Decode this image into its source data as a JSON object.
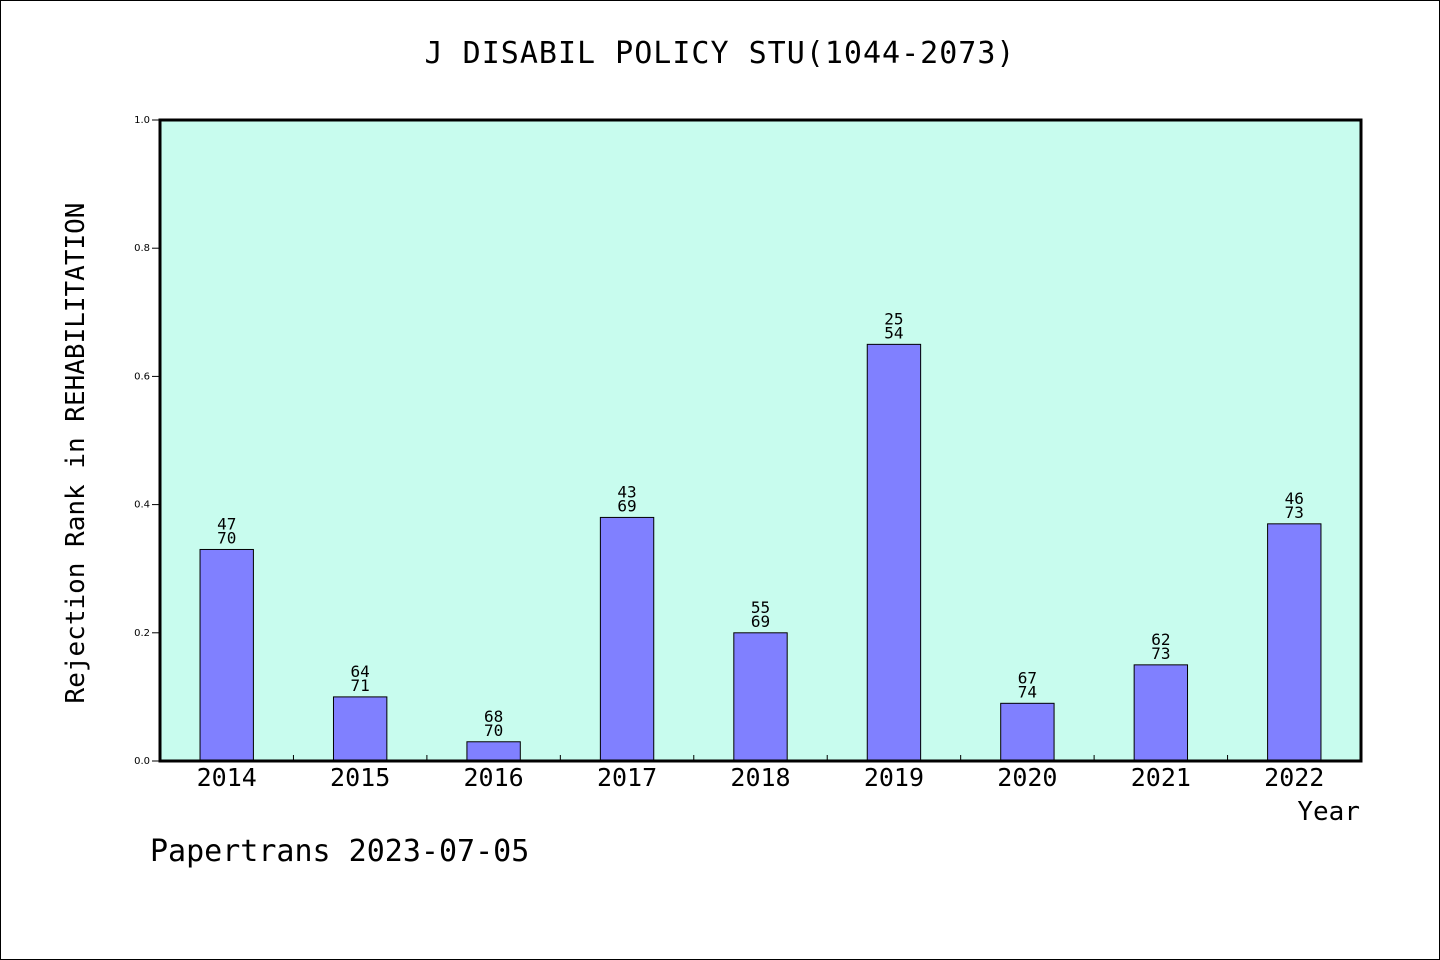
{
  "title": "J DISABIL POLICY STU(1044-2073)",
  "footer": "Papertrans 2023-07-05",
  "colors": {
    "plot_background": "#c8fcee",
    "bar_fill": "#8080ff",
    "bar_stroke": "#000000"
  },
  "chart_data": {
    "type": "bar",
    "title": "J DISABIL POLICY STU(1044-2073)",
    "xlabel": "Year",
    "ylabel": "Rejection Rank in REHABILITATION",
    "ylim": [
      0,
      1.0
    ],
    "yticks": [
      "0.0",
      "0.2",
      "0.4",
      "0.6",
      "0.8",
      "1.0"
    ],
    "categories": [
      "2014",
      "2015",
      "2016",
      "2017",
      "2018",
      "2019",
      "2020",
      "2021",
      "2022"
    ],
    "values": [
      0.33,
      0.1,
      0.03,
      0.38,
      0.2,
      0.65,
      0.09,
      0.15,
      0.37
    ],
    "bar_labels": [
      [
        "47",
        "70"
      ],
      [
        "64",
        "71"
      ],
      [
        "68",
        "70"
      ],
      [
        "43",
        "69"
      ],
      [
        "55",
        "69"
      ],
      [
        "25",
        "54"
      ],
      [
        "67",
        "74"
      ],
      [
        "62",
        "73"
      ],
      [
        "46",
        "73"
      ]
    ],
    "grid": false,
    "legend": "none"
  }
}
